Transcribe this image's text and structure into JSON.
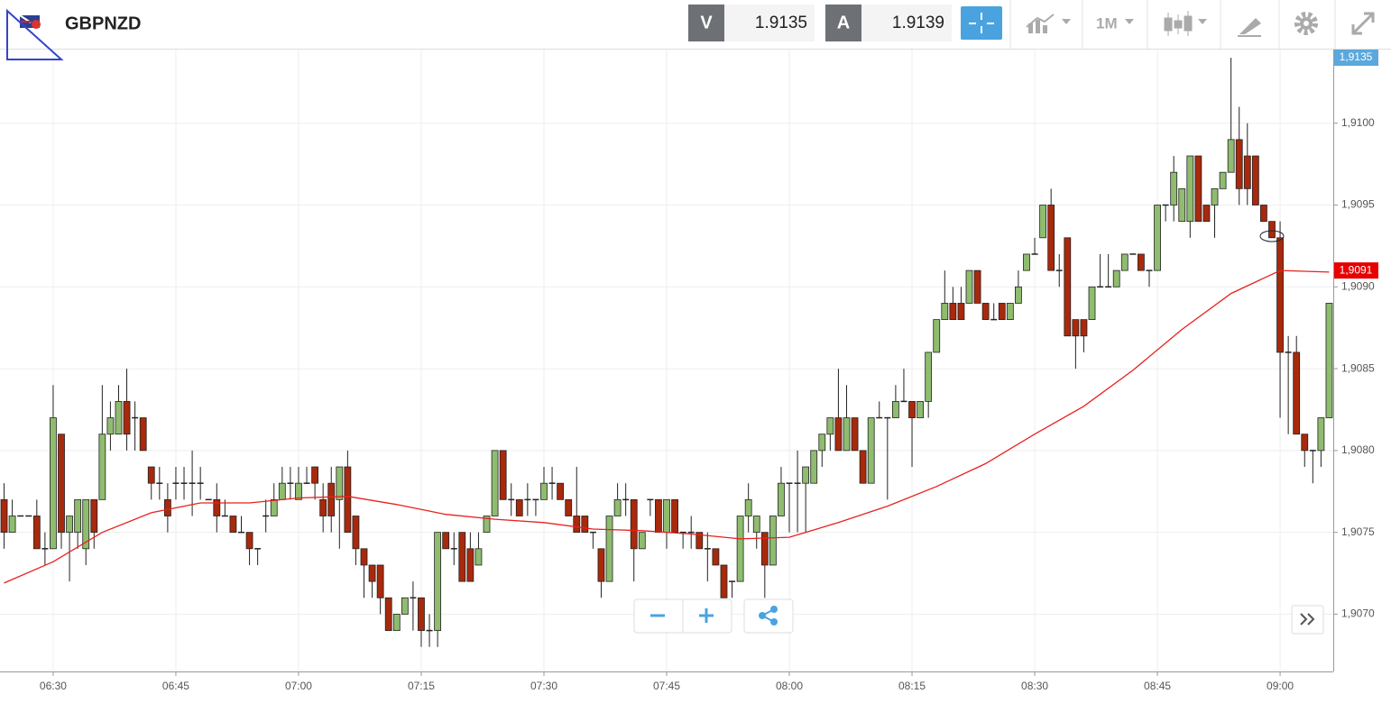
{
  "toolbar": {
    "symbol": "GBPNZD",
    "bid_label": "V",
    "bid": 1.9135,
    "ask_label": "A",
    "ask": 1.9139,
    "timeframe": "1M"
  },
  "chart_data": {
    "type": "candlestick",
    "up_color": "#8fbc6f",
    "down_color": "#a8290c",
    "grid": true,
    "ylim": [
      1.90665,
      1.91045
    ],
    "yticks": [
      {
        "value": 1.907,
        "label": "1,9070"
      },
      {
        "value": 1.9075,
        "label": "1,9075"
      },
      {
        "value": 1.908,
        "label": "1,9080"
      },
      {
        "value": 1.9085,
        "label": "1,9085"
      },
      {
        "value": 1.909,
        "label": "1,9090"
      },
      {
        "value": 1.9095,
        "label": "1,9095"
      },
      {
        "value": 1.91,
        "label": "1,9100"
      }
    ],
    "xticks": [
      "06:30",
      "06:45",
      "07:00",
      "07:15",
      "07:30",
      "07:45",
      "08:00",
      "08:15",
      "08:30",
      "08:45",
      "09:00"
    ],
    "x": [
      "06:24",
      "06:25",
      "06:26",
      "06:27",
      "06:28",
      "06:29",
      "06:30",
      "06:31",
      "06:32",
      "06:33",
      "06:34",
      "06:35",
      "06:36",
      "06:37",
      "06:38",
      "06:39",
      "06:40",
      "06:41",
      "06:42",
      "06:43",
      "06:44",
      "06:45",
      "06:46",
      "06:47",
      "06:48",
      "06:49",
      "06:50",
      "06:51",
      "06:52",
      "06:53",
      "06:54",
      "06:55",
      "06:56",
      "06:57",
      "06:58",
      "06:59",
      "07:00",
      "07:01",
      "07:02",
      "07:03",
      "07:04",
      "07:05",
      "07:06",
      "07:07",
      "07:08",
      "07:09",
      "07:10",
      "07:11",
      "07:12",
      "07:13",
      "07:14",
      "07:15",
      "07:16",
      "07:17",
      "07:18",
      "07:19",
      "07:20",
      "07:21",
      "07:22",
      "07:23",
      "07:24",
      "07:25",
      "07:26",
      "07:27",
      "07:28",
      "07:29",
      "07:30",
      "07:31",
      "07:32",
      "07:33",
      "07:34",
      "07:35",
      "07:36",
      "07:37",
      "07:38",
      "07:39",
      "07:40",
      "07:41",
      "07:42",
      "07:43",
      "07:44",
      "07:45",
      "07:46",
      "07:47",
      "07:48",
      "07:49",
      "07:50",
      "07:51",
      "07:52",
      "07:53",
      "07:54",
      "07:55",
      "07:56",
      "07:57",
      "07:58",
      "07:59",
      "08:00",
      "08:01",
      "08:02",
      "08:03",
      "08:04",
      "08:05",
      "08:06",
      "08:07",
      "08:08",
      "08:09",
      "08:10",
      "08:11",
      "08:12",
      "08:13",
      "08:14",
      "08:15",
      "08:16",
      "08:17",
      "08:18",
      "08:19",
      "08:20",
      "08:21",
      "08:22",
      "08:23",
      "08:24",
      "08:25",
      "08:26",
      "08:27",
      "08:28",
      "08:29",
      "08:30",
      "08:31",
      "08:32",
      "08:33",
      "08:34",
      "08:35",
      "08:36",
      "08:37",
      "08:38",
      "08:39",
      "08:40",
      "08:41",
      "08:42",
      "08:43",
      "08:44",
      "08:45",
      "08:46",
      "08:47",
      "08:48",
      "08:49",
      "08:50",
      "08:51",
      "08:52",
      "08:53",
      "08:54",
      "08:55",
      "08:56",
      "08:57",
      "08:58",
      "08:59",
      "09:00",
      "09:01",
      "09:02",
      "09:03",
      "09:04",
      "09:05",
      "09:06"
    ],
    "open": [
      1.9077,
      1.9075,
      1.9076,
      1.9076,
      1.9076,
      1.9074,
      1.9074,
      1.9081,
      1.9075,
      1.9075,
      1.9074,
      1.9077,
      1.9077,
      1.9081,
      1.9081,
      1.9083,
      1.9082,
      1.9082,
      1.9079,
      1.9078,
      1.9077,
      1.9078,
      1.9078,
      1.9078,
      1.9078,
      1.9077,
      1.9077,
      1.9076,
      1.9076,
      1.9075,
      1.9075,
      1.9074,
      1.9076,
      1.9076,
      1.9077,
      1.9078,
      1.9077,
      1.9078,
      1.9079,
      1.9077,
      1.9078,
      1.9077,
      1.9079,
      1.9076,
      1.9074,
      1.9073,
      1.9073,
      1.9071,
      1.9069,
      1.907,
      1.9071,
      1.9071,
      1.9069,
      1.9069,
      1.9075,
      1.9074,
      1.9075,
      1.9074,
      1.9073,
      1.9075,
      1.9076,
      1.908,
      1.9077,
      1.9077,
      1.9077,
      1.9077,
      1.9077,
      1.9078,
      1.9078,
      1.9077,
      1.9076,
      1.9076,
      1.9075,
      1.9074,
      1.9072,
      1.9076,
      1.9077,
      1.9077,
      1.9074,
      1.9077,
      1.9077,
      1.9075,
      1.9077,
      1.9075,
      1.9075,
      1.9075,
      1.9074,
      1.9074,
      1.9073,
      1.9072,
      1.9072,
      1.9076,
      1.9075,
      1.9075,
      1.9073,
      1.9076,
      1.9078,
      1.9078,
      1.9078,
      1.9078,
      1.908,
      1.9081,
      1.9082,
      1.908,
      1.9082,
      1.908,
      1.9078,
      1.9082,
      1.9082,
      1.9082,
      1.9083,
      1.9083,
      1.9082,
      1.9083,
      1.9086,
      1.9088,
      1.9089,
      1.9089,
      1.9089,
      1.9091,
      1.9089,
      1.9088,
      1.9089,
      1.9088,
      1.9089,
      1.9091,
      1.9092,
      1.9093,
      1.9095,
      1.9091,
      1.9093,
      1.9088,
      1.9088,
      1.9088,
      1.909,
      1.909,
      1.909,
      1.9091,
      1.9092,
      1.9092,
      1.9091,
      1.9091,
      1.9095,
      1.9095,
      1.9094,
      1.9094,
      1.9098,
      1.9095,
      1.9095,
      1.9096,
      1.9097,
      1.9099,
      1.9098,
      1.9098,
      1.9095,
      1.9094,
      1.9093,
      1.9086,
      1.9086,
      1.9081,
      1.908,
      1.908,
      1.9082
    ],
    "high": [
      1.9078,
      1.9077,
      1.9076,
      1.9076,
      1.9077,
      1.9075,
      1.9084,
      1.9081,
      1.9076,
      1.9077,
      1.9077,
      1.9077,
      1.9084,
      1.9083,
      1.9084,
      1.9085,
      1.9083,
      1.9082,
      1.9079,
      1.9079,
      1.9078,
      1.9079,
      1.9079,
      1.908,
      1.9079,
      1.9077,
      1.9078,
      1.9077,
      1.9076,
      1.9076,
      1.9075,
      1.9074,
      1.9077,
      1.9078,
      1.9079,
      1.9079,
      1.9079,
      1.9079,
      1.9079,
      1.9078,
      1.9079,
      1.9079,
      1.908,
      1.9076,
      1.9074,
      1.9073,
      1.9073,
      1.9071,
      1.907,
      1.9071,
      1.9072,
      1.9071,
      1.907,
      1.9075,
      1.9075,
      1.9075,
      1.9075,
      1.9075,
      1.9075,
      1.9076,
      1.908,
      1.908,
      1.9078,
      1.9077,
      1.9078,
      1.9077,
      1.9079,
      1.9079,
      1.9078,
      1.9077,
      1.9079,
      1.9076,
      1.9075,
      1.9074,
      1.9076,
      1.9078,
      1.9078,
      1.9077,
      1.9075,
      1.9077,
      1.9077,
      1.9077,
      1.9077,
      1.9075,
      1.9076,
      1.9075,
      1.9075,
      1.9074,
      1.9073,
      1.9072,
      1.9076,
      1.9078,
      1.9076,
      1.9075,
      1.9076,
      1.9079,
      1.9078,
      1.908,
      1.9079,
      1.908,
      1.9081,
      1.9082,
      1.9085,
      1.9084,
      1.9082,
      1.908,
      1.9082,
      1.9083,
      1.9082,
      1.9084,
      1.9085,
      1.9083,
      1.9083,
      1.9086,
      1.9088,
      1.9091,
      1.909,
      1.909,
      1.9091,
      1.9091,
      1.9089,
      1.9089,
      1.9089,
      1.9089,
      1.9091,
      1.9092,
      1.9093,
      1.9095,
      1.9096,
      1.9092,
      1.9093,
      1.9088,
      1.9088,
      1.909,
      1.9092,
      1.9092,
      1.9091,
      1.9092,
      1.9092,
      1.9092,
      1.9091,
      1.9095,
      1.9095,
      1.9098,
      1.9096,
      1.9098,
      1.9098,
      1.9095,
      1.9096,
      1.9097,
      1.9104,
      1.9101,
      1.91,
      1.9098,
      1.9095,
      1.9094,
      1.9094,
      1.9087,
      1.9087,
      1.9081,
      1.908,
      1.9082,
      1.9089
    ],
    "low": [
      1.9074,
      1.9075,
      1.9076,
      1.9076,
      1.9074,
      1.9073,
      1.9074,
      1.9074,
      1.9072,
      1.9074,
      1.9073,
      1.9074,
      1.9077,
      1.908,
      1.9081,
      1.908,
      1.908,
      1.908,
      1.9077,
      1.9077,
      1.9075,
      1.9077,
      1.9077,
      1.9076,
      1.9077,
      1.9077,
      1.9075,
      1.9076,
      1.9075,
      1.9075,
      1.9073,
      1.9073,
      1.9075,
      1.9076,
      1.9077,
      1.9077,
      1.9077,
      1.9078,
      1.9077,
      1.9075,
      1.9075,
      1.9074,
      1.9075,
      1.9073,
      1.9071,
      1.9071,
      1.907,
      1.9069,
      1.9069,
      1.907,
      1.9069,
      1.9068,
      1.9068,
      1.9068,
      1.9074,
      1.9073,
      1.9072,
      1.9072,
      1.9073,
      1.9075,
      1.9076,
      1.9077,
      1.9076,
      1.9076,
      1.9076,
      1.9076,
      1.9077,
      1.9077,
      1.9077,
      1.9076,
      1.9075,
      1.9075,
      1.9074,
      1.9071,
      1.9072,
      1.9076,
      1.9076,
      1.9072,
      1.9074,
      1.9076,
      1.9075,
      1.9074,
      1.9075,
      1.9074,
      1.9074,
      1.9074,
      1.9072,
      1.9073,
      1.9071,
      1.9071,
      1.9072,
      1.9075,
      1.9074,
      1.9071,
      1.9073,
      1.9076,
      1.9075,
      1.9075,
      1.9075,
      1.9078,
      1.9079,
      1.908,
      1.908,
      1.908,
      1.908,
      1.9078,
      1.9078,
      1.9082,
      1.9077,
      1.9082,
      1.9083,
      1.9079,
      1.9082,
      1.9082,
      1.9086,
      1.9088,
      1.9088,
      1.9088,
      1.9089,
      1.9089,
      1.9088,
      1.9088,
      1.9088,
      1.9088,
      1.9089,
      1.9091,
      1.9092,
      1.9093,
      1.9091,
      1.909,
      1.9087,
      1.9085,
      1.9086,
      1.9088,
      1.909,
      1.909,
      1.909,
      1.9091,
      1.9092,
      1.9091,
      1.909,
      1.9091,
      1.9094,
      1.9094,
      1.9094,
      1.9093,
      1.9094,
      1.9094,
      1.9093,
      1.9096,
      1.9097,
      1.9095,
      1.9095,
      1.9095,
      1.9094,
      1.9093,
      1.9082,
      1.9081,
      1.9081,
      1.9079,
      1.9078,
      1.9079,
      1.9082
    ],
    "close": [
      1.9075,
      1.9076,
      1.9076,
      1.9076,
      1.9074,
      1.9074,
      1.9082,
      1.9075,
      1.9076,
      1.9077,
      1.9077,
      1.9075,
      1.9081,
      1.9082,
      1.9083,
      1.9081,
      1.9082,
      1.908,
      1.9078,
      1.9078,
      1.9076,
      1.9078,
      1.9078,
      1.9078,
      1.9078,
      1.9077,
      1.9076,
      1.9076,
      1.9075,
      1.9075,
      1.9074,
      1.9074,
      1.9076,
      1.9077,
      1.9078,
      1.9078,
      1.9078,
      1.9078,
      1.9078,
      1.9076,
      1.9076,
      1.9079,
      1.9075,
      1.9074,
      1.9073,
      1.9072,
      1.9071,
      1.9069,
      1.907,
      1.9071,
      1.9071,
      1.9069,
      1.9069,
      1.9075,
      1.9074,
      1.9074,
      1.9072,
      1.9072,
      1.9074,
      1.9076,
      1.908,
      1.9077,
      1.9077,
      1.9076,
      1.9077,
      1.9077,
      1.9078,
      1.9078,
      1.9077,
      1.9076,
      1.9075,
      1.9075,
      1.9075,
      1.9072,
      1.9076,
      1.9077,
      1.9077,
      1.9074,
      1.9075,
      1.9077,
      1.9075,
      1.9077,
      1.9075,
      1.9075,
      1.9075,
      1.9074,
      1.9074,
      1.9073,
      1.9071,
      1.9072,
      1.9076,
      1.9077,
      1.9076,
      1.9073,
      1.9076,
      1.9078,
      1.9078,
      1.9078,
      1.9079,
      1.908,
      1.9081,
      1.9082,
      1.908,
      1.9082,
      1.908,
      1.9078,
      1.9082,
      1.9082,
      1.9082,
      1.9083,
      1.9083,
      1.9082,
      1.9083,
      1.9086,
      1.9088,
      1.9089,
      1.9088,
      1.9088,
      1.9091,
      1.9089,
      1.9088,
      1.9088,
      1.9088,
      1.9089,
      1.909,
      1.9092,
      1.9092,
      1.9095,
      1.9091,
      1.9091,
      1.9087,
      1.9087,
      1.9087,
      1.909,
      1.909,
      1.909,
      1.9091,
      1.9092,
      1.9092,
      1.9091,
      1.9091,
      1.9095,
      1.9095,
      1.9097,
      1.9096,
      1.9098,
      1.9094,
      1.9094,
      1.9096,
      1.9097,
      1.9099,
      1.9096,
      1.9096,
      1.9095,
      1.9094,
      1.9093,
      1.9086,
      1.9086,
      1.9081,
      1.908,
      1.908,
      1.9082,
      1.9089
    ],
    "moving_average": {
      "color": "#e8211d",
      "x": [
        "06:24",
        "06:30",
        "06:36",
        "06:42",
        "06:48",
        "06:54",
        "07:00",
        "07:06",
        "07:12",
        "07:18",
        "07:24",
        "07:30",
        "07:36",
        "07:42",
        "07:48",
        "07:54",
        "08:00",
        "08:06",
        "08:12",
        "08:18",
        "08:24",
        "08:30",
        "08:36",
        "08:42",
        "08:48",
        "08:54",
        "09:00",
        "09:06"
      ],
      "values": [
        1.90719,
        1.90732,
        1.9075,
        1.90762,
        1.90768,
        1.90768,
        1.90771,
        1.90772,
        1.90767,
        1.90761,
        1.90758,
        1.90756,
        1.90752,
        1.90751,
        1.90749,
        1.90746,
        1.90747,
        1.90756,
        1.90766,
        1.90778,
        1.90792,
        1.9081,
        1.90827,
        1.90849,
        1.90874,
        1.90896,
        1.9091,
        1.90909
      ]
    },
    "price_tags": [
      {
        "value": 1.9135,
        "label": "1,9135",
        "color": "#5ba8dc"
      },
      {
        "value": 1.9091,
        "label": "1,9091",
        "color": "#e80000"
      }
    ]
  }
}
